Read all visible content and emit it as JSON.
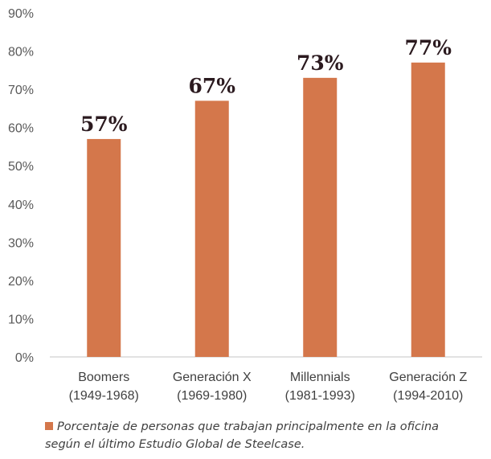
{
  "chart_data": {
    "type": "bar",
    "categories": [
      [
        "Boomers",
        "(1949-1968)"
      ],
      [
        "Generación X",
        "(1969-1980)"
      ],
      [
        "Millennials",
        "(1981-1993)"
      ],
      [
        "Generación Z",
        "(1994-2010)"
      ]
    ],
    "series": [
      {
        "name": "Porcentaje de personas que trabajan principalmente en la oficina según el último Estudio Global de Steelcase.",
        "values": [
          57,
          67,
          73,
          77
        ]
      }
    ],
    "data_labels": [
      "57%",
      "67%",
      "73%",
      "77%"
    ],
    "yticks": [
      "0%",
      "10%",
      "20%",
      "30%",
      "40%",
      "50%",
      "60%",
      "70%",
      "80%",
      "90%"
    ],
    "ylim": [
      0,
      90
    ],
    "grid": false,
    "legend_placement": "bottom",
    "legend_lines": [
      "Porcentaje de personas que trabajan principalmente en la oficina",
      "según el último Estudio Global de Steelcase."
    ],
    "colors": {
      "bar": "#d4774b",
      "label": "#2b1a1f",
      "axis": "#d9d9d9"
    }
  }
}
